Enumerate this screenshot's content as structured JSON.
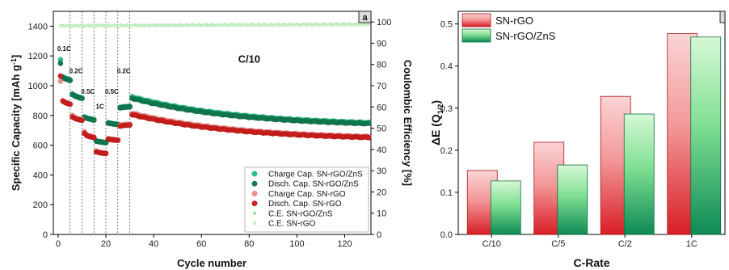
{
  "chart_data": [
    {
      "type": "scatter",
      "panel_label": "a",
      "xlabel": "Cycle number",
      "ylabel": "Specific Capacity [mAh g⁻¹]",
      "ylabel_parts": {
        "main": "Specific Capacity [mAh g",
        "sup": "-1",
        "end": "]"
      },
      "y2label": "Coulombic Efficiency [%]",
      "xlim": [
        -2,
        131
      ],
      "ylim": [
        0,
        1500
      ],
      "y2lim": [
        0,
        105
      ],
      "x_ticks": [
        0,
        20,
        40,
        60,
        80,
        100,
        120
      ],
      "y_ticks": [
        0,
        200,
        400,
        600,
        800,
        1000,
        1200,
        1400
      ],
      "y2_ticks": [
        0,
        10,
        20,
        30,
        40,
        50,
        60,
        70,
        80,
        90,
        100
      ],
      "rate_dividers": [
        5,
        10,
        15,
        20,
        25,
        30
      ],
      "annotations": [
        {
          "text": "0.1C",
          "x": 2.5,
          "y": 1235
        },
        {
          "text": "0.2C",
          "x": 7.5,
          "y": 1085
        },
        {
          "text": "0.5C",
          "x": 12.5,
          "y": 945
        },
        {
          "text": "1C",
          "x": 17.5,
          "y": 845
        },
        {
          "text": "0.5C",
          "x": 22.5,
          "y": 945
        },
        {
          "text": "0.2C",
          "x": 27.5,
          "y": 1085
        },
        {
          "text": "C/10",
          "x": 80,
          "y": 1155,
          "large": true
        }
      ],
      "series": [
        {
          "name": "Charge Cap. SN-rGO/ZnS",
          "color": "#2fbf8a",
          "axis": "left",
          "segments": [
            {
              "start": 1,
              "end": 5,
              "values": [
                1175,
                1060,
                1052,
                1046,
                1040
              ]
            },
            {
              "start": 6,
              "end": 10,
              "values": [
                945,
                935,
                928,
                922,
                918
              ]
            },
            {
              "start": 11,
              "end": 15,
              "values": [
                790,
                784,
                780,
                776,
                772
              ]
            },
            {
              "start": 16,
              "end": 20,
              "values": [
                630,
                626,
                623,
                621,
                619
              ]
            },
            {
              "start": 21,
              "end": 25,
              "values": [
                752,
                748,
                745,
                743,
                741
              ]
            },
            {
              "start": 26,
              "end": 30,
              "values": [
                855,
                858,
                860,
                861,
                862
              ]
            },
            {
              "start": 31,
              "end": 130,
              "from": 925,
              "to": 752,
              "curve": "decay"
            }
          ]
        },
        {
          "name": "Disch. Cap. SN-rGO/ZnS",
          "color": "#127a52",
          "axis": "left",
          "segments": [
            {
              "start": 1,
              "end": 5,
              "values": [
                1150,
                1052,
                1046,
                1040,
                1035
              ]
            },
            {
              "start": 6,
              "end": 10,
              "values": [
                940,
                930,
                924,
                918,
                914
              ]
            },
            {
              "start": 11,
              "end": 15,
              "values": [
                786,
                780,
                776,
                772,
                768
              ]
            },
            {
              "start": 16,
              "end": 20,
              "values": [
                626,
                623,
                620,
                618,
                616
              ]
            },
            {
              "start": 21,
              "end": 25,
              "values": [
                748,
                745,
                742,
                740,
                738
              ]
            },
            {
              "start": 26,
              "end": 30,
              "values": [
                850,
                853,
                855,
                856,
                857
              ]
            },
            {
              "start": 31,
              "end": 130,
              "from": 915,
              "to": 745,
              "curve": "decay"
            }
          ]
        },
        {
          "name": "Charge Cap. SN-rGO",
          "color": "#f28e8e",
          "axis": "left",
          "segments": [
            {
              "start": 1,
              "end": 5,
              "values": [
                1030,
                900,
                890,
                884,
                878
              ]
            },
            {
              "start": 6,
              "end": 10,
              "values": [
                800,
                788,
                780,
                776,
                772
              ]
            },
            {
              "start": 11,
              "end": 15,
              "values": [
                690,
                672,
                664,
                660,
                656
              ]
            },
            {
              "start": 16,
              "end": 20,
              "values": [
                560,
                554,
                551,
                549,
                548
              ]
            },
            {
              "start": 21,
              "end": 25,
              "values": [
                645,
                642,
                640,
                638,
                637
              ]
            },
            {
              "start": 26,
              "end": 30,
              "values": [
                735,
                738,
                740,
                741,
                742
              ]
            },
            {
              "start": 31,
              "end": 130,
              "from": 815,
              "to": 658,
              "curve": "decay"
            }
          ]
        },
        {
          "name": "Disch. Cap. SN-rGO",
          "color": "#c8201e",
          "axis": "left",
          "segments": [
            {
              "start": 1,
              "end": 5,
              "values": [
                1065,
                895,
                886,
                880,
                875
              ]
            },
            {
              "start": 6,
              "end": 10,
              "values": [
                790,
                780,
                774,
                770,
                766
              ]
            },
            {
              "start": 11,
              "end": 15,
              "values": [
                680,
                664,
                658,
                654,
                650
              ]
            },
            {
              "start": 16,
              "end": 20,
              "values": [
                555,
                550,
                547,
                545,
                544
              ]
            },
            {
              "start": 21,
              "end": 25,
              "values": [
                640,
                637,
                635,
                633,
                632
              ]
            },
            {
              "start": 26,
              "end": 30,
              "values": [
                728,
                731,
                733,
                734,
                735
              ]
            },
            {
              "start": 31,
              "end": 130,
              "from": 805,
              "to": 652,
              "curve": "decay"
            }
          ]
        },
        {
          "name": "C.E. SN-rGO/ZnS",
          "color": "#a5e6a0",
          "axis": "right",
          "segments": [
            {
              "start": 1,
              "end": 130,
              "from": 98.3,
              "to": 99.0,
              "curve": "flat"
            }
          ]
        },
        {
          "name": "C.E. SN-rGO",
          "color": "#c9ecc6",
          "axis": "right",
          "segments": [
            {
              "start": 1,
              "end": 130,
              "from": 98.0,
              "to": 98.6,
              "curve": "flat"
            }
          ]
        }
      ]
    },
    {
      "type": "bar",
      "xlabel": "C-Rate",
      "ylabel": "ΔE (Q₁/₂)",
      "ylabel_parts": {
        "main": "ΔE (Q",
        "sub": "1/2",
        "end": ")"
      },
      "categories": [
        "C/10",
        "C/5",
        "C/2",
        "1C"
      ],
      "ylim": [
        0,
        0.53
      ],
      "y_ticks": [
        0.0,
        0.1,
        0.2,
        0.3,
        0.4,
        0.5
      ],
      "y_tick_labels": [
        "0.0",
        "0.1",
        "0.2",
        "0.3",
        "0.4",
        "0.5"
      ],
      "series": [
        {
          "name": "SN-rGO",
          "color": "#e8454a",
          "values": [
            0.152,
            0.219,
            0.328,
            0.477
          ]
        },
        {
          "name": "SN-rGO/ZnS",
          "color": "#1c9a5a",
          "values": [
            0.127,
            0.165,
            0.286,
            0.469
          ]
        }
      ]
    }
  ]
}
